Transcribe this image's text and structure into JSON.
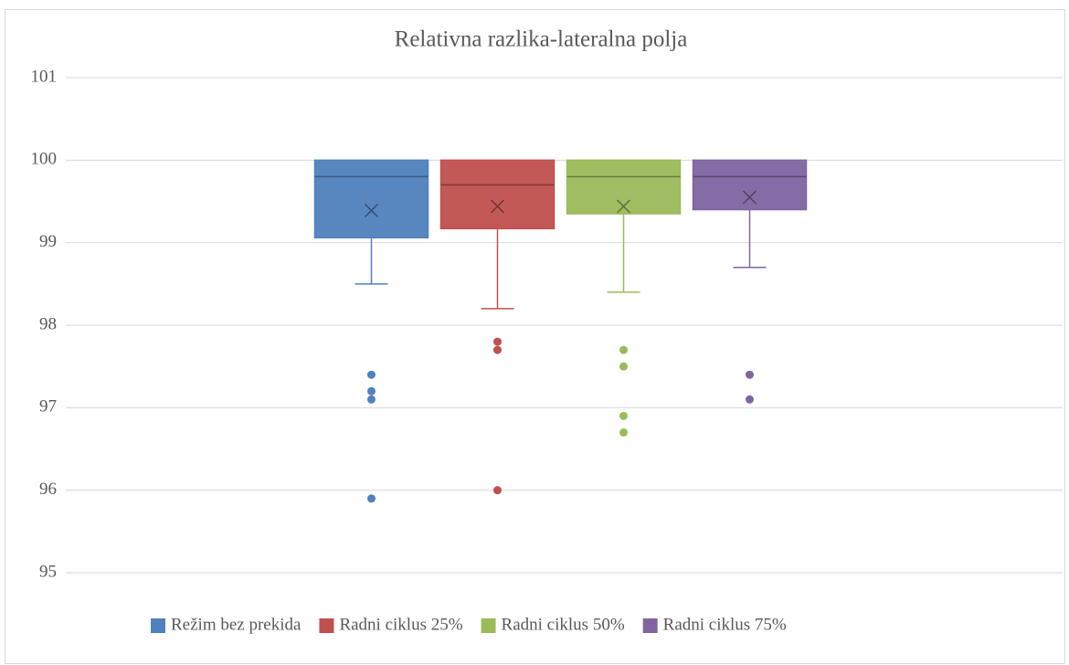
{
  "chart_data": {
    "type": "boxplot",
    "title": "Relativna razlika-lateralna polja",
    "ylim": [
      95,
      101
    ],
    "yticks": [
      95,
      96,
      97,
      98,
      99,
      100,
      101
    ],
    "grid": true,
    "legend": "bottom",
    "series": [
      {
        "name": "Režim bez prekida",
        "color": "#4f81bd",
        "min": 98.5,
        "q1": 99.06,
        "median": 99.8,
        "q3": 100,
        "max": 100,
        "mean": 99.39,
        "outliers": [
          97.4,
          97.2,
          97.1,
          95.9
        ]
      },
      {
        "name": "Radni ciklus 25%",
        "color": "#c0504d",
        "min": 98.2,
        "q1": 99.17,
        "median": 99.7,
        "q3": 100,
        "max": 100,
        "mean": 99.44,
        "outliers": [
          97.8,
          97.7,
          96.0
        ]
      },
      {
        "name": "Radni ciklus 50%",
        "color": "#9bbb59",
        "min": 98.4,
        "q1": 99.35,
        "median": 99.8,
        "q3": 100,
        "max": 100,
        "mean": 99.44,
        "outliers": [
          97.7,
          97.5,
          96.9,
          96.7
        ]
      },
      {
        "name": "Radni ciklus 75%",
        "color": "#8064a2",
        "min": 98.7,
        "q1": 99.4,
        "median": 99.8,
        "q3": 100,
        "max": 100,
        "mean": 99.55,
        "outliers": [
          97.4,
          97.1
        ]
      }
    ]
  }
}
